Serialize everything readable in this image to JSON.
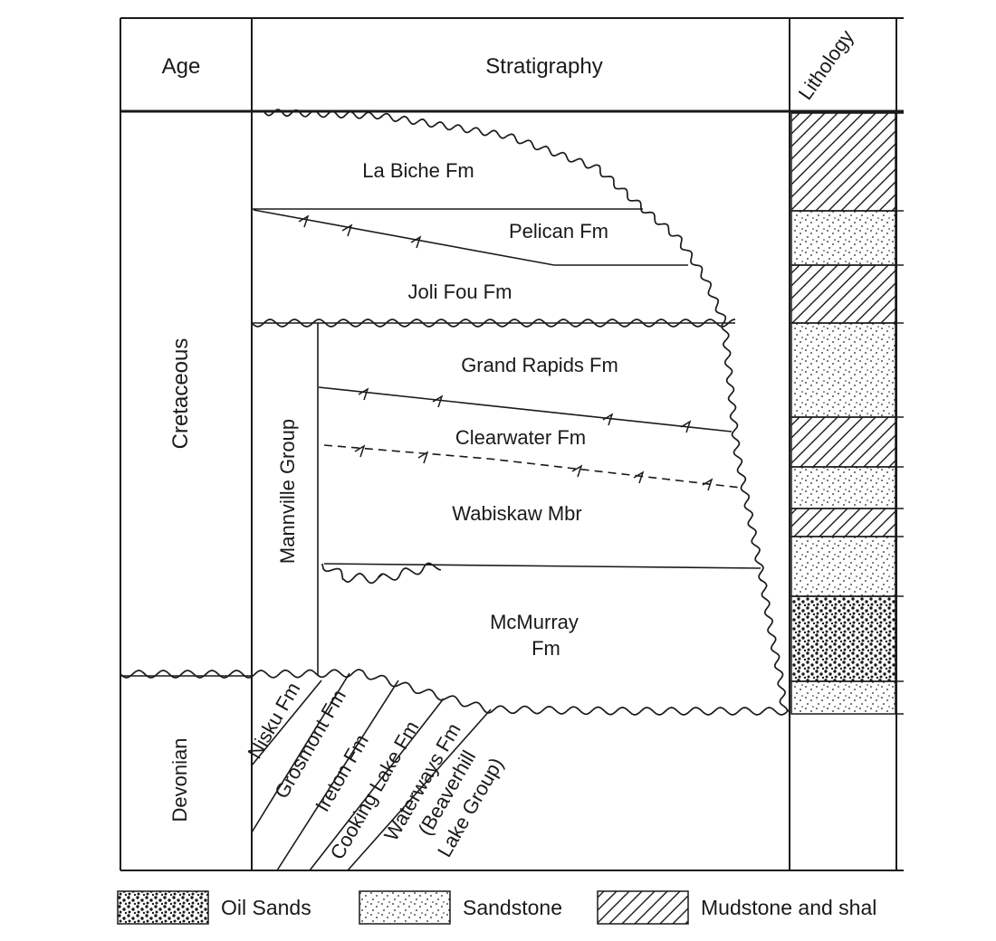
{
  "header": {
    "age": "Age",
    "stratigraphy": "Stratigraphy",
    "lithology": "Lithology"
  },
  "ages": {
    "cretaceous": "Cretaceous",
    "devonian": "Devonian"
  },
  "group": {
    "mannville": "Mannville Group"
  },
  "formations": {
    "la_biche": "La Biche Fm",
    "pelican": "Pelican Fm",
    "joli_fou": "Joli Fou Fm",
    "grand_rapids": "Grand Rapids Fm",
    "clearwater": "Clearwater Fm",
    "wabiskaw": "Wabiskaw Mbr",
    "mcmurray_1": "McMurray",
    "mcmurray_2": "Fm"
  },
  "devonian_units": {
    "nisku": "Nisku Fm",
    "grosmont": "Grosmont Fm",
    "ireton": "Ireton Fm",
    "cooking_lake": "Cooking Lake Fm",
    "waterways_1": "Waterways Fm",
    "waterways_2": "(Beaverhill",
    "waterways_3": "Lake Group)"
  },
  "legend": {
    "oil_sands": "Oil Sands",
    "sandstone": "Sandstone",
    "mudstone": "Mudstone and shal"
  },
  "lithology_column": [
    "Mudstone and shale",
    "Sandstone",
    "Mudstone and shale",
    "Sandstone",
    "Mudstone and shale",
    "Sandstone",
    "Mudstone and shale",
    "Sandstone",
    "Oil Sands",
    "Sandstone"
  ],
  "colors": {
    "ink": "#1a1a1a",
    "background": "#ffffff"
  }
}
